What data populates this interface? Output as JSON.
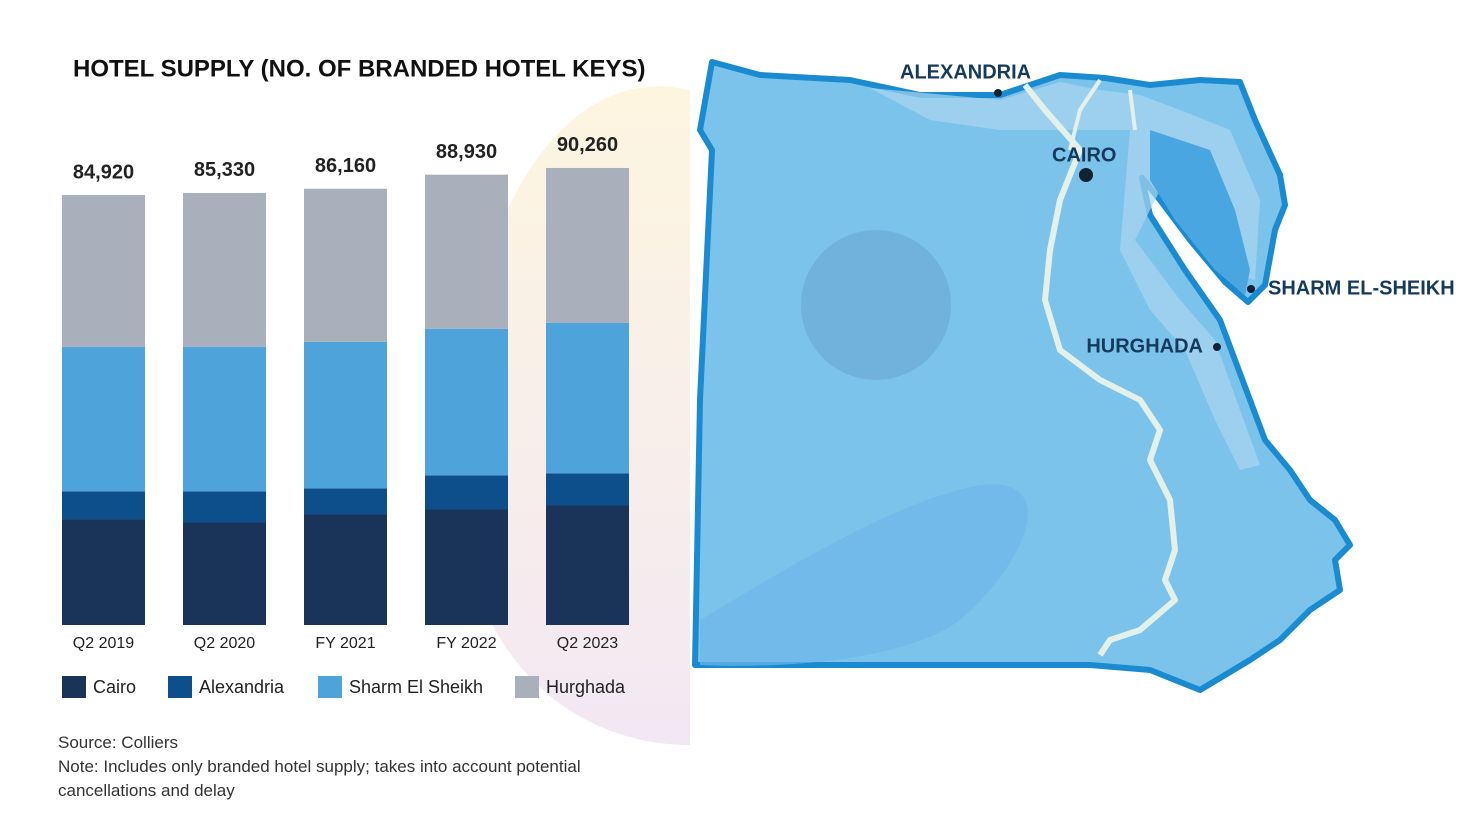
{
  "chart_data": {
    "type": "stacked-bar",
    "title": "HOTEL SUPPLY (NO. OF BRANDED HOTEL KEYS)",
    "categories": [
      "Q2 2019",
      "Q2 2020",
      "FY 2021",
      "FY 2022",
      "Q2 2023"
    ],
    "series": [
      {
        "name": "Cairo",
        "color": "#1a3358",
        "values": [
          20830,
          20240,
          21820,
          22810,
          23600
        ]
      },
      {
        "name": "Alexandria",
        "color": "#0d4f8b",
        "values": [
          5550,
          6150,
          5160,
          6740,
          6350
        ]
      },
      {
        "name": "Sharm El Sheikh",
        "color": "#4fa3db",
        "values": [
          28560,
          28560,
          28960,
          28960,
          29750
        ]
      },
      {
        "name": "Hurghada",
        "color": "#a9b0bc",
        "values": [
          29980,
          30380,
          30220,
          30420,
          30560
        ]
      }
    ],
    "totals": [
      84920,
      85330,
      86160,
      88930,
      90260
    ],
    "total_labels": [
      "84,920",
      "85,330",
      "86,160",
      "88,930",
      "90,260"
    ],
    "ylim": [
      0,
      100000
    ]
  },
  "map": {
    "labels": [
      "ALEXANDRIA",
      "CAIRO",
      "SHARM EL-SHEIKH",
      "HURGHADA"
    ]
  },
  "footer": {
    "source": "Source: Colliers",
    "note": "Note: Includes only branded hotel supply; takes into account potential cancellations and delay"
  }
}
